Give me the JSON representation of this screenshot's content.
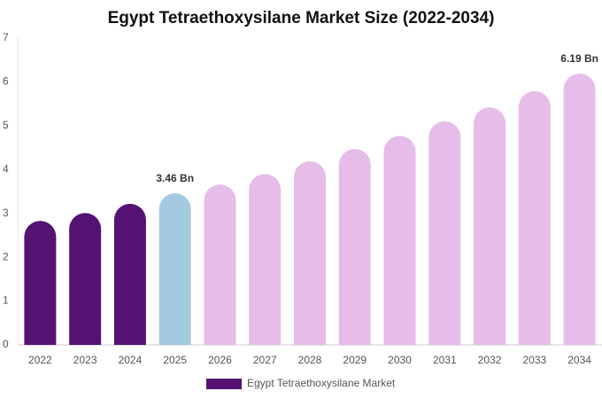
{
  "chart_data": {
    "type": "bar",
    "title": "Egypt Tetraethoxysilane Market Size (2022-2034)",
    "categories": [
      "2022",
      "2023",
      "2024",
      "2025",
      "2026",
      "2027",
      "2028",
      "2029",
      "2030",
      "2031",
      "2032",
      "2033",
      "2034"
    ],
    "series": [
      {
        "name": "Egypt Tetraethoxysilane Market",
        "color": "#541373",
        "values": [
          2.83,
          3.01,
          3.22,
          3.46,
          3.66,
          3.9,
          4.19,
          4.47,
          4.77,
          5.1,
          5.42,
          5.79,
          6.19
        ],
        "value_labels": [
          null,
          null,
          null,
          "3.46 Bn",
          null,
          null,
          null,
          null,
          null,
          null,
          null,
          null,
          "6.19 Bn"
        ],
        "colors": [
          "#541373",
          "#541373",
          "#541373",
          "#a4cadf",
          "#e6bce8",
          "#e6bce8",
          "#e6bce8",
          "#e6bce8",
          "#e6bce8",
          "#e6bce8",
          "#e6bce8",
          "#e6bce8",
          "#e6bce8"
        ]
      }
    ],
    "ylim": [
      0,
      7
    ],
    "yticks": [
      0,
      1,
      2,
      3,
      4,
      5,
      6,
      7
    ],
    "grid": false
  }
}
